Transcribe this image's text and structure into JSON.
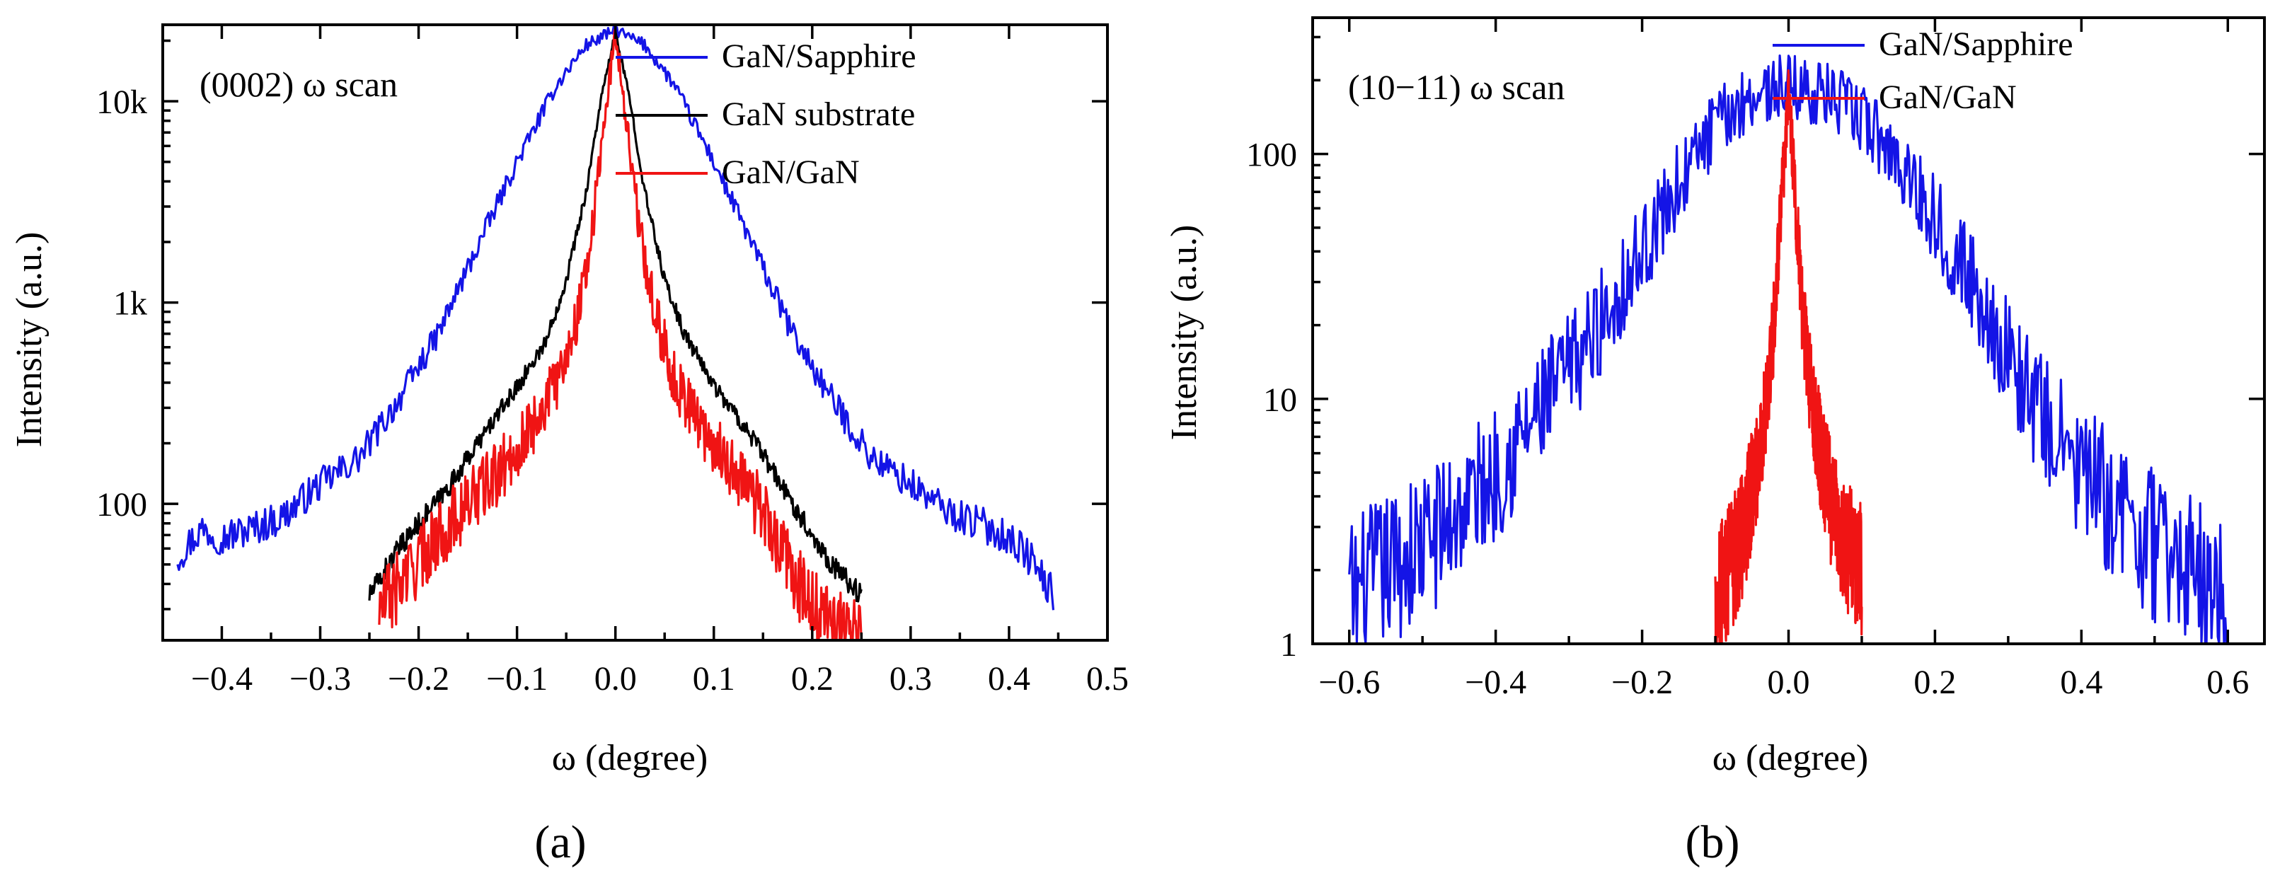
{
  "figure": {
    "panels": [
      "(a)",
      "(b)"
    ]
  },
  "chart_data": [
    {
      "type": "line",
      "panel_label": "(a)",
      "annotation": "(0002) ω scan",
      "xlabel": "ω (degree)",
      "ylabel": "Intensity (a.u.)",
      "yscale": "log",
      "xlim": [
        -0.46,
        0.5
      ],
      "ylim": [
        21,
        24000
      ],
      "xticks": [
        -0.4,
        -0.3,
        -0.2,
        -0.1,
        0.0,
        0.1,
        0.2,
        0.3,
        0.4,
        0.5
      ],
      "xtick_labels": [
        "−0.4",
        "−0.3",
        "−0.2",
        "−0.1",
        "0.0",
        "0.1",
        "0.2",
        "0.3",
        "0.4",
        "0.5"
      ],
      "yticks": [
        100,
        1000,
        10000
      ],
      "ytick_labels": [
        "100",
        "1k",
        "10k"
      ],
      "legend_position": "top-right",
      "series": [
        {
          "name": "GaN/Sapphire",
          "color": "#1414e6",
          "x": [
            -0.445,
            -0.42,
            -0.4,
            -0.37,
            -0.34,
            -0.3,
            -0.26,
            -0.22,
            -0.18,
            -0.14,
            -0.1,
            -0.06,
            -0.03,
            0.0,
            0.03,
            0.06,
            0.1,
            0.14,
            0.18,
            0.22,
            0.26,
            0.3,
            0.34,
            0.37,
            0.4,
            0.42,
            0.445
          ],
          "y": [
            55,
            75,
            68,
            75,
            85,
            125,
            170,
            330,
            700,
            1900,
            5000,
            12000,
            19000,
            22500,
            19000,
            12000,
            5000,
            1900,
            700,
            330,
            170,
            125,
            90,
            80,
            68,
            55,
            35
          ],
          "noise": 0.1
        },
        {
          "name": "GaN substrate",
          "color": "#000000",
          "x": [
            -0.25,
            -0.22,
            -0.2,
            -0.17,
            -0.14,
            -0.1,
            -0.07,
            -0.05,
            -0.03,
            -0.015,
            0.0,
            0.015,
            0.03,
            0.05,
            0.07,
            0.1,
            0.14,
            0.17,
            0.2,
            0.22,
            0.25
          ],
          "y": [
            35,
            60,
            80,
            120,
            200,
            380,
            650,
            1300,
            3500,
            10000,
            22000,
            10000,
            3500,
            1300,
            700,
            390,
            210,
            120,
            70,
            50,
            35
          ],
          "noise": 0.06
        },
        {
          "name": "GaN/GaN",
          "color": "#f01414",
          "x": [
            -0.24,
            -0.21,
            -0.18,
            -0.15,
            -0.12,
            -0.09,
            -0.06,
            -0.04,
            -0.025,
            -0.01,
            0.0,
            0.01,
            0.025,
            0.04,
            0.06,
            0.09,
            0.12,
            0.15,
            0.18,
            0.2,
            0.22,
            0.25
          ],
          "y": [
            30,
            45,
            70,
            100,
            140,
            220,
            400,
            800,
            2000,
            9000,
            22000,
            9000,
            2200,
            900,
            420,
            230,
            150,
            90,
            45,
            30,
            25,
            21
          ],
          "noise": 0.2
        }
      ]
    },
    {
      "type": "line",
      "panel_label": "(b)",
      "annotation": "(10−11) ω scan",
      "xlabel": "ω (degree)",
      "ylabel": "Intensity (a.u.)",
      "yscale": "log",
      "xlim": [
        -0.65,
        0.65
      ],
      "ylim": [
        1,
        360
      ],
      "xticks": [
        -0.6,
        -0.4,
        -0.2,
        0.0,
        0.2,
        0.4,
        0.6
      ],
      "xtick_labels": [
        "−0.6",
        "−0.4",
        "−0.2",
        "0.0",
        "0.2",
        "0.4",
        "0.6"
      ],
      "yticks": [
        1,
        10,
        100
      ],
      "ytick_labels": [
        "1",
        "10",
        "100"
      ],
      "legend_position": "top-right",
      "series": [
        {
          "name": "GaN/Sapphire",
          "color": "#1414e6",
          "x": [
            -0.6,
            -0.55,
            -0.5,
            -0.45,
            -0.4,
            -0.35,
            -0.3,
            -0.25,
            -0.2,
            -0.15,
            -0.1,
            -0.05,
            0.0,
            0.05,
            0.1,
            0.15,
            0.2,
            0.25,
            0.3,
            0.35,
            0.4,
            0.45,
            0.5,
            0.55,
            0.6
          ],
          "y": [
            1.5,
            2,
            2.5,
            3.5,
            5,
            8,
            13,
            22,
            40,
            75,
            130,
            175,
            190,
            175,
            140,
            95,
            55,
            30,
            15,
            8,
            5,
            3.5,
            2.5,
            2,
            1.5
          ],
          "noise": 0.35
        },
        {
          "name": "GaN/GaN",
          "color": "#f01414",
          "x": [
            -0.1,
            -0.08,
            -0.06,
            -0.04,
            -0.03,
            -0.02,
            -0.01,
            0.0,
            0.01,
            0.02,
            0.03,
            0.04,
            0.06,
            0.08,
            0.1
          ],
          "y": [
            1.5,
            2,
            3,
            6,
            10,
            20,
            60,
            180,
            60,
            20,
            11,
            7,
            3.5,
            2.5,
            2
          ],
          "noise": 0.3
        }
      ]
    }
  ]
}
